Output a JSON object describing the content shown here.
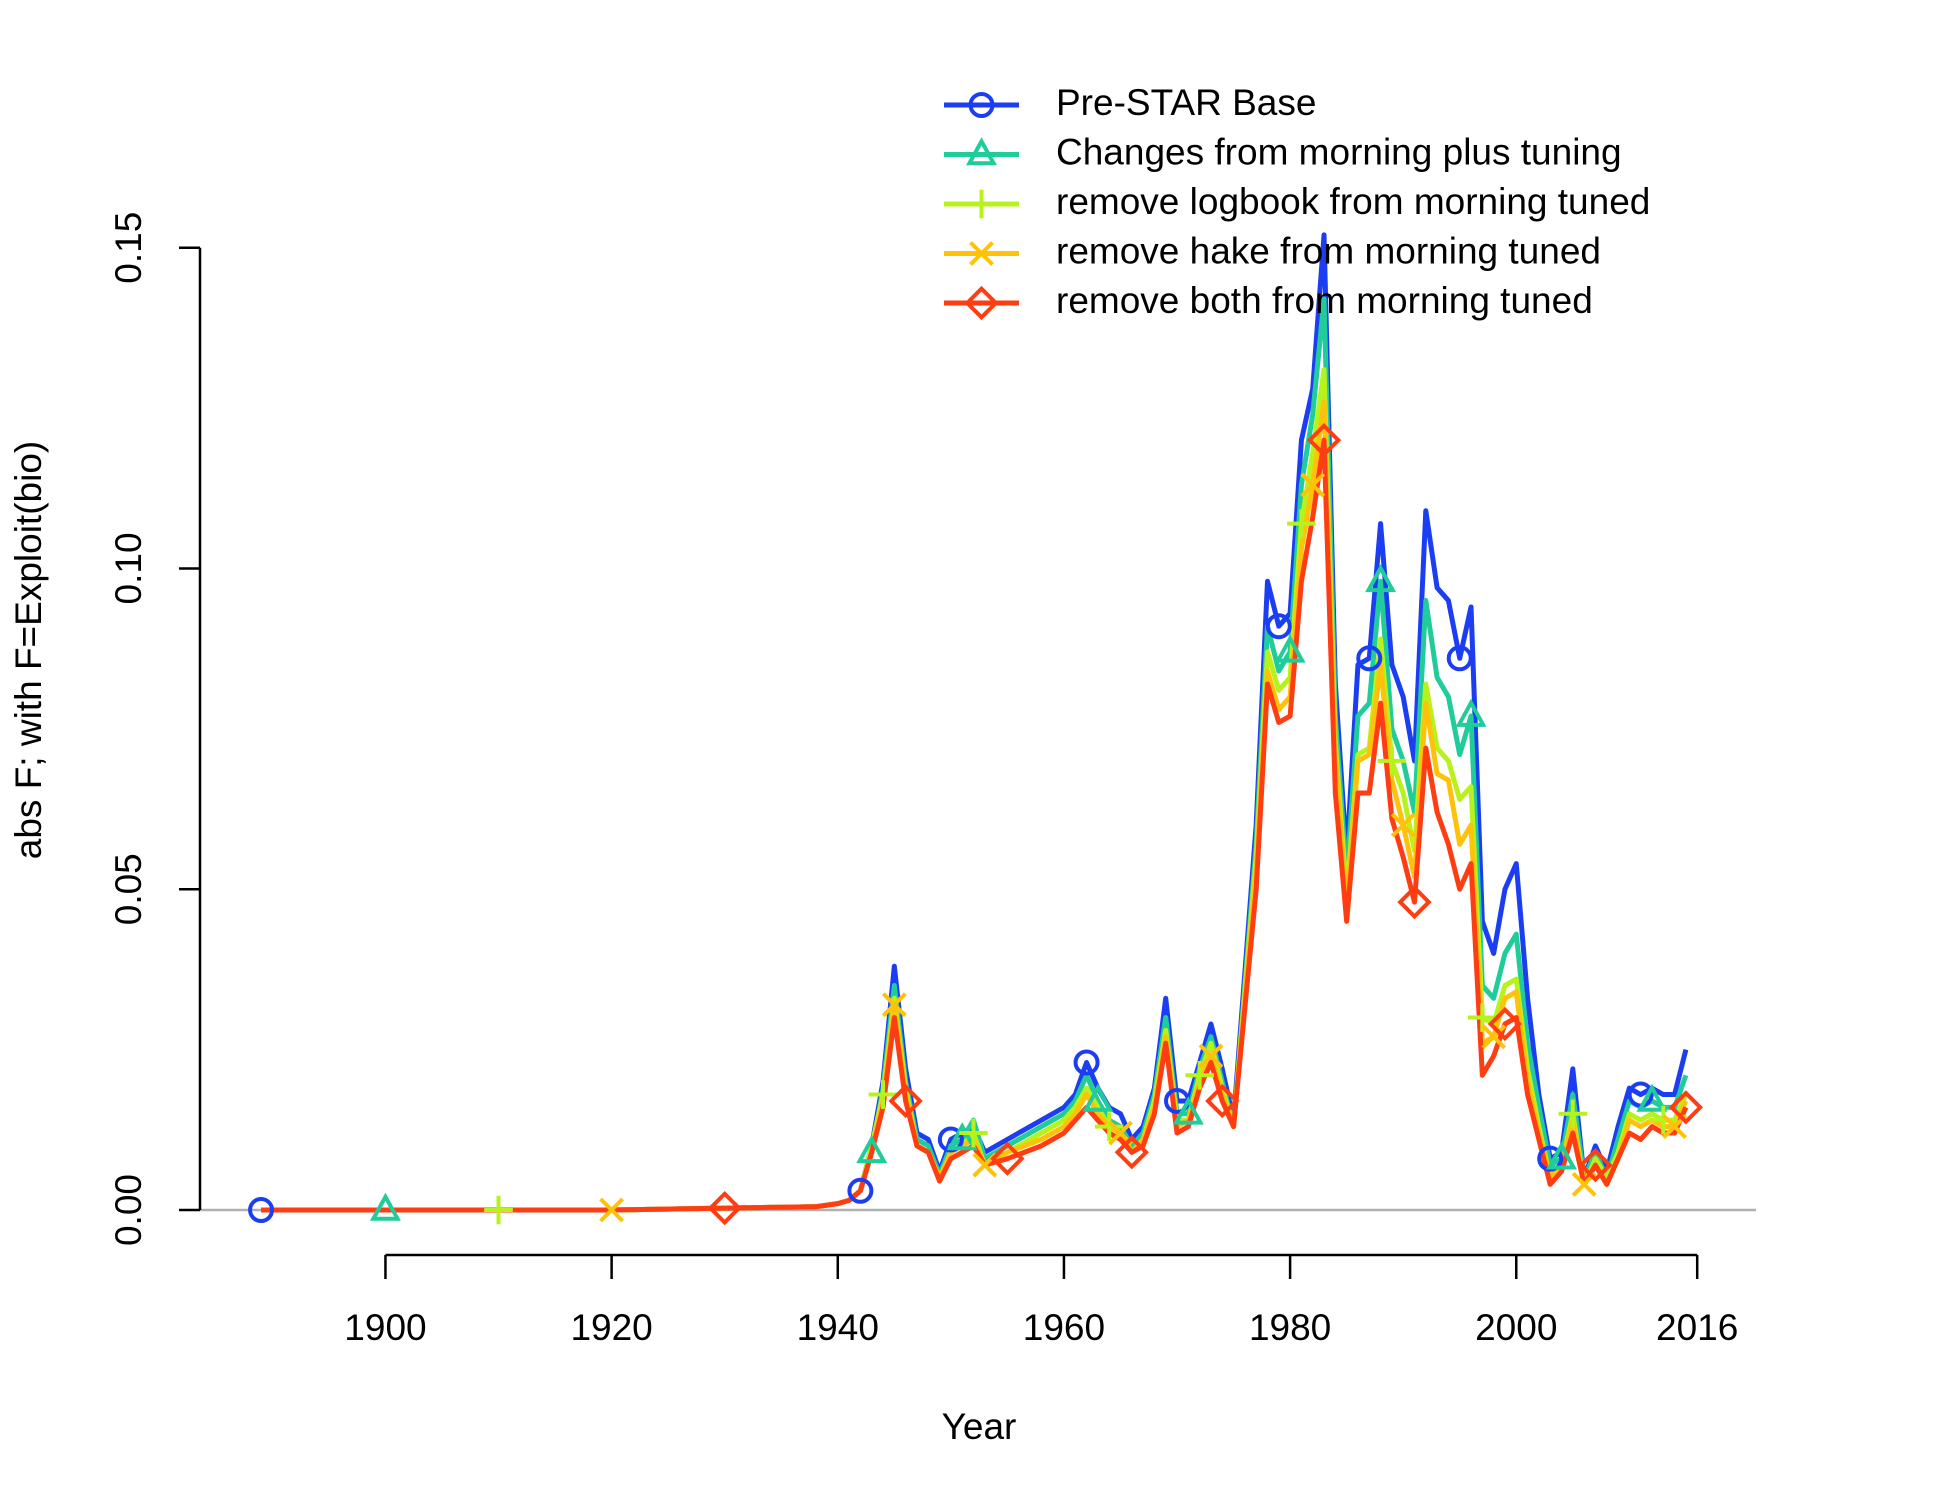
{
  "chart_data": {
    "type": "line",
    "x_label": "Year",
    "y_label": "abs F; with F=Exploit(bio)",
    "x": [
      1889,
      1900,
      1910,
      1920,
      1930,
      1938,
      1940,
      1941,
      1942,
      1943,
      1944,
      1945,
      1946,
      1947,
      1948,
      1949,
      1950,
      1951,
      1952,
      1953,
      1955,
      1958,
      1960,
      1961,
      1962,
      1963,
      1964,
      1965,
      1966,
      1967,
      1968,
      1969,
      1970,
      1971,
      1972,
      1973,
      1974,
      1975,
      1977,
      1978,
      1979,
      1980,
      1981,
      1982,
      1983,
      1984,
      1985,
      1986,
      1987,
      1988,
      1989,
      1990,
      1991,
      1992,
      1993,
      1994,
      1995,
      1996,
      1997,
      1998,
      1999,
      2000,
      2001,
      2002,
      2003,
      2004,
      2005,
      2006,
      2007,
      2008,
      2009,
      2010,
      2011,
      2012,
      2013,
      2014,
      2015
    ],
    "series": [
      {
        "name": "Pre-STAR Base",
        "color": "#1c3ef2",
        "marker": "circle",
        "values": [
          0,
          0,
          0,
          0,
          0.0003,
          0.0005,
          0.001,
          0.0015,
          0.003,
          0.01,
          0.02,
          0.038,
          0.022,
          0.012,
          0.011,
          0.006,
          0.011,
          0.012,
          0.013,
          0.009,
          0.011,
          0.014,
          0.016,
          0.018,
          0.023,
          0.019,
          0.016,
          0.015,
          0.011,
          0.013,
          0.019,
          0.033,
          0.017,
          0.017,
          0.023,
          0.029,
          0.022,
          0.014,
          0.06,
          0.098,
          0.091,
          0.093,
          0.12,
          0.128,
          0.152,
          0.082,
          0.055,
          0.085,
          0.086,
          0.107,
          0.085,
          0.08,
          0.07,
          0.109,
          0.097,
          0.095,
          0.086,
          0.094,
          0.045,
          0.04,
          0.05,
          0.054,
          0.033,
          0.018,
          0.008,
          0.009,
          0.022,
          0.005,
          0.01,
          0.006,
          0.013,
          0.019,
          0.018,
          0.019,
          0.018,
          0.018,
          0.025
        ]
      },
      {
        "name": "Changes from morning plus tuning",
        "color": "#1fcc9a",
        "marker": "triangle",
        "values": [
          0,
          0,
          0,
          0,
          0.0003,
          0.0005,
          0.001,
          0.0015,
          0.003,
          0.009,
          0.019,
          0.035,
          0.02,
          0.011,
          0.01,
          0.0055,
          0.01,
          0.011,
          0.014,
          0.008,
          0.01,
          0.013,
          0.015,
          0.017,
          0.021,
          0.017,
          0.014,
          0.013,
          0.01,
          0.012,
          0.018,
          0.03,
          0.015,
          0.015,
          0.022,
          0.027,
          0.02,
          0.013,
          0.057,
          0.091,
          0.084,
          0.087,
          0.113,
          0.124,
          0.142,
          0.077,
          0.052,
          0.077,
          0.079,
          0.098,
          0.075,
          0.07,
          0.062,
          0.095,
          0.083,
          0.08,
          0.071,
          0.077,
          0.035,
          0.033,
          0.04,
          0.043,
          0.026,
          0.016,
          0.007,
          0.008,
          0.018,
          0.005,
          0.009,
          0.005,
          0.011,
          0.017,
          0.016,
          0.017,
          0.016,
          0.016,
          0.021
        ]
      },
      {
        "name": "remove logbook from morning tuned",
        "color": "#b8f21c",
        "marker": "plus",
        "values": [
          0,
          0,
          0,
          0,
          0.0003,
          0.0005,
          0.001,
          0.0015,
          0.003,
          0.01,
          0.018,
          0.033,
          0.019,
          0.01,
          0.009,
          0.005,
          0.009,
          0.01,
          0.012,
          0.007,
          0.009,
          0.012,
          0.014,
          0.016,
          0.019,
          0.016,
          0.013,
          0.012,
          0.009,
          0.011,
          0.017,
          0.028,
          0.014,
          0.014,
          0.021,
          0.026,
          0.019,
          0.013,
          0.055,
          0.087,
          0.081,
          0.083,
          0.107,
          0.118,
          0.131,
          0.073,
          0.049,
          0.071,
          0.072,
          0.089,
          0.07,
          0.065,
          0.056,
          0.082,
          0.072,
          0.07,
          0.064,
          0.066,
          0.03,
          0.029,
          0.035,
          0.036,
          0.022,
          0.013,
          0.005,
          0.007,
          0.015,
          0.004,
          0.008,
          0.005,
          0.009,
          0.015,
          0.014,
          0.015,
          0.014,
          0.014,
          0.018
        ]
      },
      {
        "name": "remove hake from morning tuned",
        "color": "#ffc20a",
        "marker": "cross",
        "values": [
          0,
          0,
          0,
          0,
          0.0003,
          0.0005,
          0.001,
          0.0015,
          0.003,
          0.009,
          0.017,
          0.032,
          0.018,
          0.01,
          0.009,
          0.005,
          0.009,
          0.01,
          0.011,
          0.007,
          0.009,
          0.011,
          0.013,
          0.015,
          0.018,
          0.015,
          0.013,
          0.012,
          0.009,
          0.011,
          0.016,
          0.027,
          0.013,
          0.014,
          0.02,
          0.024,
          0.018,
          0.013,
          0.053,
          0.084,
          0.078,
          0.08,
          0.103,
          0.113,
          0.126,
          0.071,
          0.047,
          0.07,
          0.071,
          0.085,
          0.067,
          0.06,
          0.052,
          0.079,
          0.068,
          0.067,
          0.057,
          0.06,
          0.026,
          0.027,
          0.033,
          0.034,
          0.02,
          0.012,
          0.005,
          0.007,
          0.014,
          0.004,
          0.007,
          0.004,
          0.008,
          0.014,
          0.013,
          0.014,
          0.013,
          0.013,
          0.017
        ]
      },
      {
        "name": "remove both from morning tuned",
        "color": "#ff3d12",
        "marker": "diamond",
        "values": [
          0,
          0,
          0,
          0,
          0.0003,
          0.0005,
          0.001,
          0.0015,
          0.003,
          0.009,
          0.016,
          0.03,
          0.017,
          0.01,
          0.009,
          0.0045,
          0.008,
          0.009,
          0.01,
          0.007,
          0.008,
          0.01,
          0.012,
          0.014,
          0.016,
          0.014,
          0.012,
          0.011,
          0.009,
          0.01,
          0.015,
          0.026,
          0.012,
          0.013,
          0.019,
          0.023,
          0.017,
          0.013,
          0.05,
          0.082,
          0.076,
          0.077,
          0.098,
          0.108,
          0.12,
          0.065,
          0.045,
          0.065,
          0.065,
          0.079,
          0.061,
          0.055,
          0.048,
          0.072,
          0.062,
          0.057,
          0.05,
          0.054,
          0.021,
          0.024,
          0.029,
          0.03,
          0.018,
          0.011,
          0.004,
          0.006,
          0.012,
          0.004,
          0.007,
          0.004,
          0.008,
          0.012,
          0.011,
          0.013,
          0.012,
          0.012,
          0.016
        ]
      }
    ],
    "xlim": [
      1883.6,
      2021.2
    ],
    "ylim": [
      -0.006,
      0.183
    ],
    "xticks": [
      1900,
      1920,
      1940,
      1960,
      1980,
      2000,
      2016
    ],
    "yticks": [
      {
        "value": 0,
        "label": "0.00"
      },
      {
        "value": 0.05,
        "label": "0.05"
      },
      {
        "value": 0.1,
        "label": "0.10"
      },
      {
        "value": 0.15,
        "label": "0.15"
      }
    ],
    "reference_line": 0,
    "legend": "top-right"
  }
}
